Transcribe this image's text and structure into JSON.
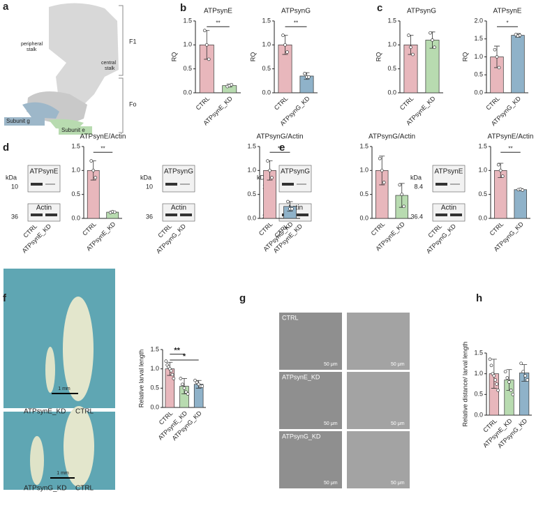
{
  "panel_labels": [
    "a",
    "b",
    "c",
    "d",
    "e",
    "f",
    "g",
    "h"
  ],
  "structure": {
    "f1": "F1",
    "fo": "Fo",
    "peripheral": [
      "peripheral",
      "stalk"
    ],
    "central": [
      "central",
      "stalk"
    ],
    "subunit_g": "Subunit g",
    "subunit_e": "Subunit e"
  },
  "blots": [
    {
      "kda": "kDa",
      "marker_top": "10",
      "marker_bottom": "36",
      "protein": "ATPsynE",
      "loading": "Actin",
      "lanes": [
        "CTRL",
        "ATPsynE_KD"
      ]
    },
    {
      "kda": "kDa",
      "marker_top": "10",
      "marker_bottom": "36",
      "protein": "ATPsynG",
      "loading": "Actin",
      "lanes": [
        "CTRL",
        "ATPsynG_KD"
      ]
    },
    {
      "kda": "kDa",
      "marker_top": "10",
      "marker_bottom": "36",
      "protein": "ATPsynG",
      "loading": "Actin",
      "lanes": [
        "CTRL",
        "ATPsynE_KD"
      ]
    },
    {
      "kda": "kDa",
      "marker_top": "8.4",
      "marker_bottom": "36.4",
      "protein": "ATPsynE",
      "loading": "Actin",
      "lanes": [
        "CTRL",
        "ATPsynG_KD"
      ]
    }
  ],
  "larvae": {
    "scale": "1 mm",
    "pairs": [
      [
        "ATPsynE_KD",
        "CTRL"
      ],
      [
        "ATPsynG_KD",
        "CTRL"
      ]
    ]
  },
  "microscopy": {
    "rows": [
      "CTRL",
      "ATPsynE_KD",
      "ATPsynG_KD"
    ],
    "scale": "50 μm"
  },
  "chart_data": [
    {
      "type": "bar",
      "title": "ATPsynE",
      "ylabel": "RQ",
      "categories": [
        "CTRL",
        "ATPsynE_KD"
      ],
      "values": [
        1.0,
        0.15
      ],
      "errors": [
        0.3,
        0.03
      ],
      "points": [
        [
          1.3,
          1.0,
          0.7
        ],
        [
          0.13,
          0.15,
          0.17
        ]
      ],
      "colors": [
        "#e8b7bc",
        "#b8dbb0"
      ],
      "ylim": [
        0,
        1.5
      ],
      "yticks": [
        {
          "value": 0,
          "label": "0.0"
        },
        {
          "value": 0.5,
          "label": "0.5"
        },
        {
          "value": 1,
          "label": "1.0"
        },
        {
          "value": 1.5,
          "label": "1.5"
        }
      ],
      "significance": [
        "**"
      ]
    },
    {
      "type": "bar",
      "title": "ATPsynG",
      "ylabel": "RQ",
      "categories": [
        "CTRL",
        "ATPsynG_KD"
      ],
      "values": [
        1.0,
        0.35
      ],
      "errors": [
        0.2,
        0.07
      ],
      "points": [
        [
          1.2,
          1.0,
          0.85
        ],
        [
          0.4,
          0.33,
          0.33
        ]
      ],
      "colors": [
        "#e8b7bc",
        "#8fb2c9"
      ],
      "ylim": [
        0,
        1.5
      ],
      "yticks": [
        {
          "value": 0,
          "label": "0.0"
        },
        {
          "value": 0.5,
          "label": "0.5"
        },
        {
          "value": 1,
          "label": "1.0"
        },
        {
          "value": 1.5,
          "label": "1.5"
        }
      ],
      "significance": [
        "**"
      ]
    },
    {
      "type": "bar",
      "title": "ATPsynG",
      "ylabel": "RQ",
      "categories": [
        "CTRL",
        "ATPsynE_KD"
      ],
      "values": [
        1.0,
        1.1
      ],
      "errors": [
        0.2,
        0.17
      ],
      "points": [
        [
          1.2,
          0.95,
          0.8
        ],
        [
          1.25,
          1.1,
          0.95
        ]
      ],
      "colors": [
        "#e8b7bc",
        "#b8dbb0"
      ],
      "ylim": [
        0,
        1.5
      ],
      "yticks": [
        {
          "value": 0,
          "label": "0.0"
        },
        {
          "value": 0.5,
          "label": "0.5"
        },
        {
          "value": 1,
          "label": "1.0"
        },
        {
          "value": 1.5,
          "label": "1.5"
        }
      ],
      "significance": []
    },
    {
      "type": "bar",
      "title": "ATPsynE",
      "ylabel": "RQ",
      "categories": [
        "CTRL",
        "ATPsynG_KD"
      ],
      "values": [
        1.0,
        1.6
      ],
      "errors": [
        0.3,
        0.05
      ],
      "points": [
        [
          1.2,
          1.0,
          0.7
        ],
        [
          1.62,
          1.58,
          1.6
        ]
      ],
      "colors": [
        "#e8b7bc",
        "#8fb2c9"
      ],
      "ylim": [
        0,
        2
      ],
      "yticks": [
        {
          "value": 0,
          "label": "0.0"
        },
        {
          "value": 0.5,
          "label": "0.5"
        },
        {
          "value": 1,
          "label": "1.0"
        },
        {
          "value": 1.5,
          "label": "1.5"
        },
        {
          "value": 2,
          "label": "2.0"
        }
      ],
      "significance": [
        "*"
      ]
    },
    {
      "type": "bar",
      "title": "ATPsynE/Actin",
      "categories": [
        "CTRL",
        "ATPsynE_KD"
      ],
      "values": [
        1.0,
        0.13
      ],
      "errors": [
        0.2,
        0.02
      ],
      "points": [
        [
          1.2,
          1.0,
          0.85
        ],
        [
          0.12,
          0.14,
          0.13
        ]
      ],
      "colors": [
        "#e8b7bc",
        "#b8dbb0"
      ],
      "ylim": [
        0,
        1.5
      ],
      "yticks": [
        {
          "value": 0,
          "label": "0.0"
        },
        {
          "value": 0.5,
          "label": "0.5"
        },
        {
          "value": 1,
          "label": "1.0"
        },
        {
          "value": 1.5,
          "label": "1.5"
        }
      ],
      "significance": [
        "**"
      ]
    },
    {
      "type": "bar",
      "title": "ATPsynG/Actin",
      "categories": [
        "CTRL",
        "ATPsynG_KD"
      ],
      "values": [
        1.0,
        0.25
      ],
      "errors": [
        0.2,
        0.1
      ],
      "points": [
        [
          1.2,
          1.0,
          0.85
        ],
        [
          0.35,
          0.2,
          0.2
        ]
      ],
      "colors": [
        "#e8b7bc",
        "#8fb2c9"
      ],
      "ylim": [
        0,
        1.5
      ],
      "yticks": [
        {
          "value": 0,
          "label": "0.0"
        },
        {
          "value": 0.5,
          "label": "0.5"
        },
        {
          "value": 1,
          "label": "1.0"
        },
        {
          "value": 1.5,
          "label": "1.5"
        }
      ],
      "significance": [
        "**"
      ]
    },
    {
      "type": "bar",
      "title": "ATPsynG/Actin",
      "categories": [
        "CTRL",
        "ATPsynE_KD"
      ],
      "values": [
        1.0,
        0.48
      ],
      "errors": [
        0.3,
        0.25
      ],
      "points": [
        [
          1.25,
          1.0,
          0.75
        ],
        [
          0.7,
          0.5,
          0.25
        ]
      ],
      "colors": [
        "#e8b7bc",
        "#b8dbb0"
      ],
      "ylim": [
        0,
        1.5
      ],
      "yticks": [
        {
          "value": 0,
          "label": "0.0"
        },
        {
          "value": 0.5,
          "label": "0.5"
        },
        {
          "value": 1,
          "label": "1.0"
        },
        {
          "value": 1.5,
          "label": "1.5"
        }
      ],
      "significance": []
    },
    {
      "type": "bar",
      "title": "ATPsynE/Actin",
      "categories": [
        "CTRL",
        "ATPsynG_KD"
      ],
      "values": [
        1.0,
        0.6
      ],
      "errors": [
        0.15,
        0.02
      ],
      "points": [
        [
          1.12,
          1.0,
          0.88
        ],
        [
          0.6,
          0.61,
          0.59
        ]
      ],
      "colors": [
        "#e8b7bc",
        "#8fb2c9"
      ],
      "ylim": [
        0,
        1.5
      ],
      "yticks": [
        {
          "value": 0,
          "label": "0.0"
        },
        {
          "value": 0.5,
          "label": "0.5"
        },
        {
          "value": 1,
          "label": "1.0"
        },
        {
          "value": 1.5,
          "label": "1.5"
        }
      ],
      "significance": [
        "**"
      ]
    },
    {
      "type": "bar",
      "ylabel": "Relative larval length",
      "categories": [
        "CTRL",
        "ATPsynE_KD",
        "ATPsynG_KD"
      ],
      "values": [
        1.0,
        0.55,
        0.6
      ],
      "errors": [
        0.17,
        0.2,
        0.1
      ],
      "points": [
        [
          1.2,
          1.1,
          1.05,
          1.0,
          0.95,
          0.85,
          0.75
        ],
        [
          0.75,
          0.6,
          0.5,
          0.4,
          0.35
        ],
        [
          0.7,
          0.65,
          0.6,
          0.55,
          0.55
        ]
      ],
      "colors": [
        "#e8b7bc",
        "#b8dbb0",
        "#8fb2c9"
      ],
      "ylim": [
        0,
        1.5
      ],
      "yticks": [
        {
          "value": 0,
          "label": "0.0"
        },
        {
          "value": 0.5,
          "label": "0.5"
        },
        {
          "value": 1,
          "label": "1.0"
        },
        {
          "value": 1.5,
          "label": "1.5"
        }
      ],
      "significance": [
        "**",
        "*"
      ]
    },
    {
      "type": "bar",
      "ylabel": "Relative distance/ larval length",
      "categories": [
        "CTRL",
        "ATPsynE_KD",
        "ATPsynG_KD"
      ],
      "values": [
        1.0,
        0.85,
        1.02
      ],
      "errors": [
        0.35,
        0.25,
        0.2
      ],
      "points": [
        [
          1.35,
          1.2,
          1.0,
          0.95,
          0.85,
          0.75,
          0.6
        ],
        [
          1.05,
          0.9,
          0.8,
          0.6,
          0.5
        ],
        [
          1.25,
          1.05,
          0.95,
          0.85
        ]
      ],
      "colors": [
        "#e8b7bc",
        "#b8dbb0",
        "#8fb2c9"
      ],
      "ylim": [
        0,
        1.5
      ],
      "yticks": [
        {
          "value": 0,
          "label": "0.0"
        },
        {
          "value": 0.5,
          "label": "0.5"
        },
        {
          "value": 1,
          "label": "1.0"
        },
        {
          "value": 1.5,
          "label": "1.5"
        }
      ],
      "significance": []
    }
  ]
}
